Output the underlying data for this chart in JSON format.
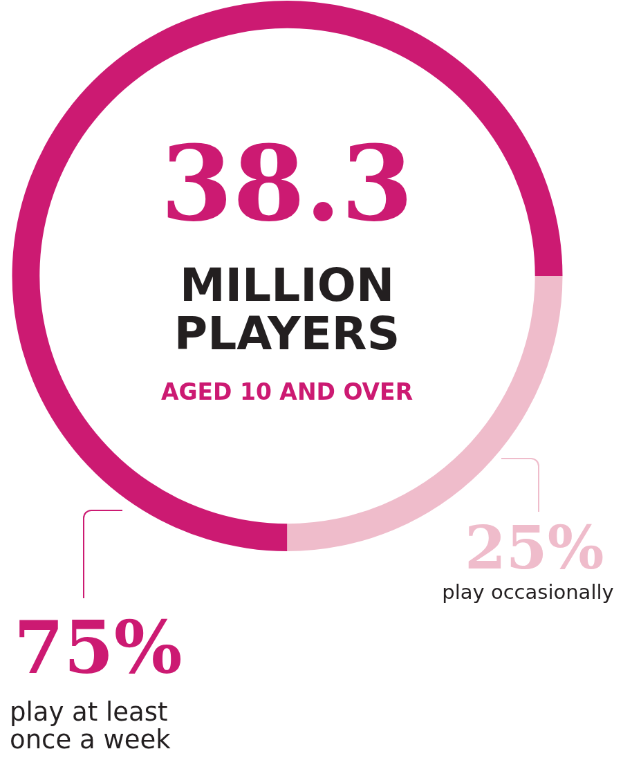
{
  "chart_data": {
    "type": "donut",
    "title": "38.3",
    "subtitle": "MILLION PLAYERS",
    "annotations": [
      "AGED 10 AND OVER"
    ],
    "categories": [
      "play at least once a week",
      "play occasionally"
    ],
    "values": [
      75,
      25
    ],
    "colors": [
      "#cc1a72",
      "#efbccb"
    ],
    "value_labels": [
      "75%",
      "25%"
    ]
  }
}
